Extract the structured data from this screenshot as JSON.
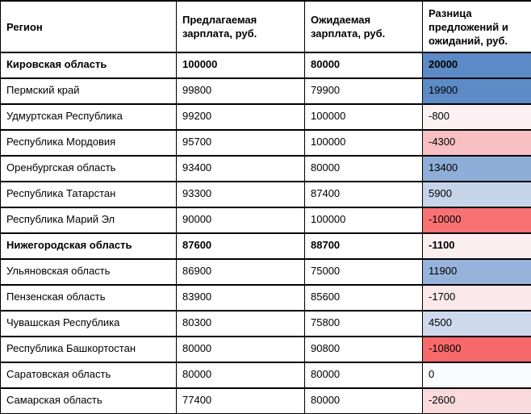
{
  "table": {
    "columns": [
      {
        "label": "Регион"
      },
      {
        "label": "Предлагаемая зарплата, руб."
      },
      {
        "label": "Ожидаемая зарплата, руб."
      },
      {
        "label": "Разница предложений и ожиданий, руб."
      }
    ],
    "rows": [
      {
        "region": "Кировская область",
        "offered": 100000,
        "expected": 80000,
        "diff": 20000,
        "bold": true,
        "diff_bg": "#5B8AC6"
      },
      {
        "region": "Пермский край",
        "offered": 99800,
        "expected": 79900,
        "diff": 19900,
        "bold": false,
        "diff_bg": "#5C8BC6"
      },
      {
        "region": "Удмуртская Республика",
        "offered": 99200,
        "expected": 100000,
        "diff": -800,
        "bold": false,
        "diff_bg": "#FBF1F3"
      },
      {
        "region": "Республика Мордовия",
        "offered": 95700,
        "expected": 100000,
        "diff": -4300,
        "bold": false,
        "diff_bg": "#F9C0C3"
      },
      {
        "region": "Оренбургская область",
        "offered": 93400,
        "expected": 80000,
        "diff": 13400,
        "bold": false,
        "diff_bg": "#8EADD8"
      },
      {
        "region": "Республика Татарстан",
        "offered": 93300,
        "expected": 87400,
        "diff": 5900,
        "bold": false,
        "diff_bg": "#C6D4E9"
      },
      {
        "region": "Республика Марий Эл",
        "offered": 90000,
        "expected": 100000,
        "diff": -10000,
        "bold": false,
        "diff_bg": "#F87274"
      },
      {
        "region": "Нижегородская область",
        "offered": 87600,
        "expected": 88700,
        "diff": -1100,
        "bold": true,
        "diff_bg": "#FBEEF0"
      },
      {
        "region": "Ульяновская область",
        "offered": 86900,
        "expected": 75000,
        "diff": 11900,
        "bold": false,
        "diff_bg": "#97B3DB"
      },
      {
        "region": "Пензенская область",
        "offered": 83900,
        "expected": 85600,
        "diff": -1700,
        "bold": false,
        "diff_bg": "#FAE8EA"
      },
      {
        "region": "Чувашская Республика",
        "offered": 80300,
        "expected": 75800,
        "diff": 4500,
        "bold": false,
        "diff_bg": "#CEDAEC"
      },
      {
        "region": "Республика Башкортостан",
        "offered": 80000,
        "expected": 90800,
        "diff": -10800,
        "bold": false,
        "diff_bg": "#F8696B"
      },
      {
        "region": "Саратовская область",
        "offered": 80000,
        "expected": 80000,
        "diff": 0,
        "bold": false,
        "diff_bg": "#FAFBFE"
      },
      {
        "region": "Самарская область",
        "offered": 77400,
        "expected": 80000,
        "diff": -2600,
        "bold": false,
        "diff_bg": "#F9DADD"
      }
    ]
  },
  "colors": {
    "border": "#000000",
    "text": "#000000",
    "header_bg": "#FFFFFF",
    "scale_blue_max": "#5A8AC6",
    "scale_mid_white": "#FCFCFF",
    "scale_red_min": "#F8696B"
  }
}
